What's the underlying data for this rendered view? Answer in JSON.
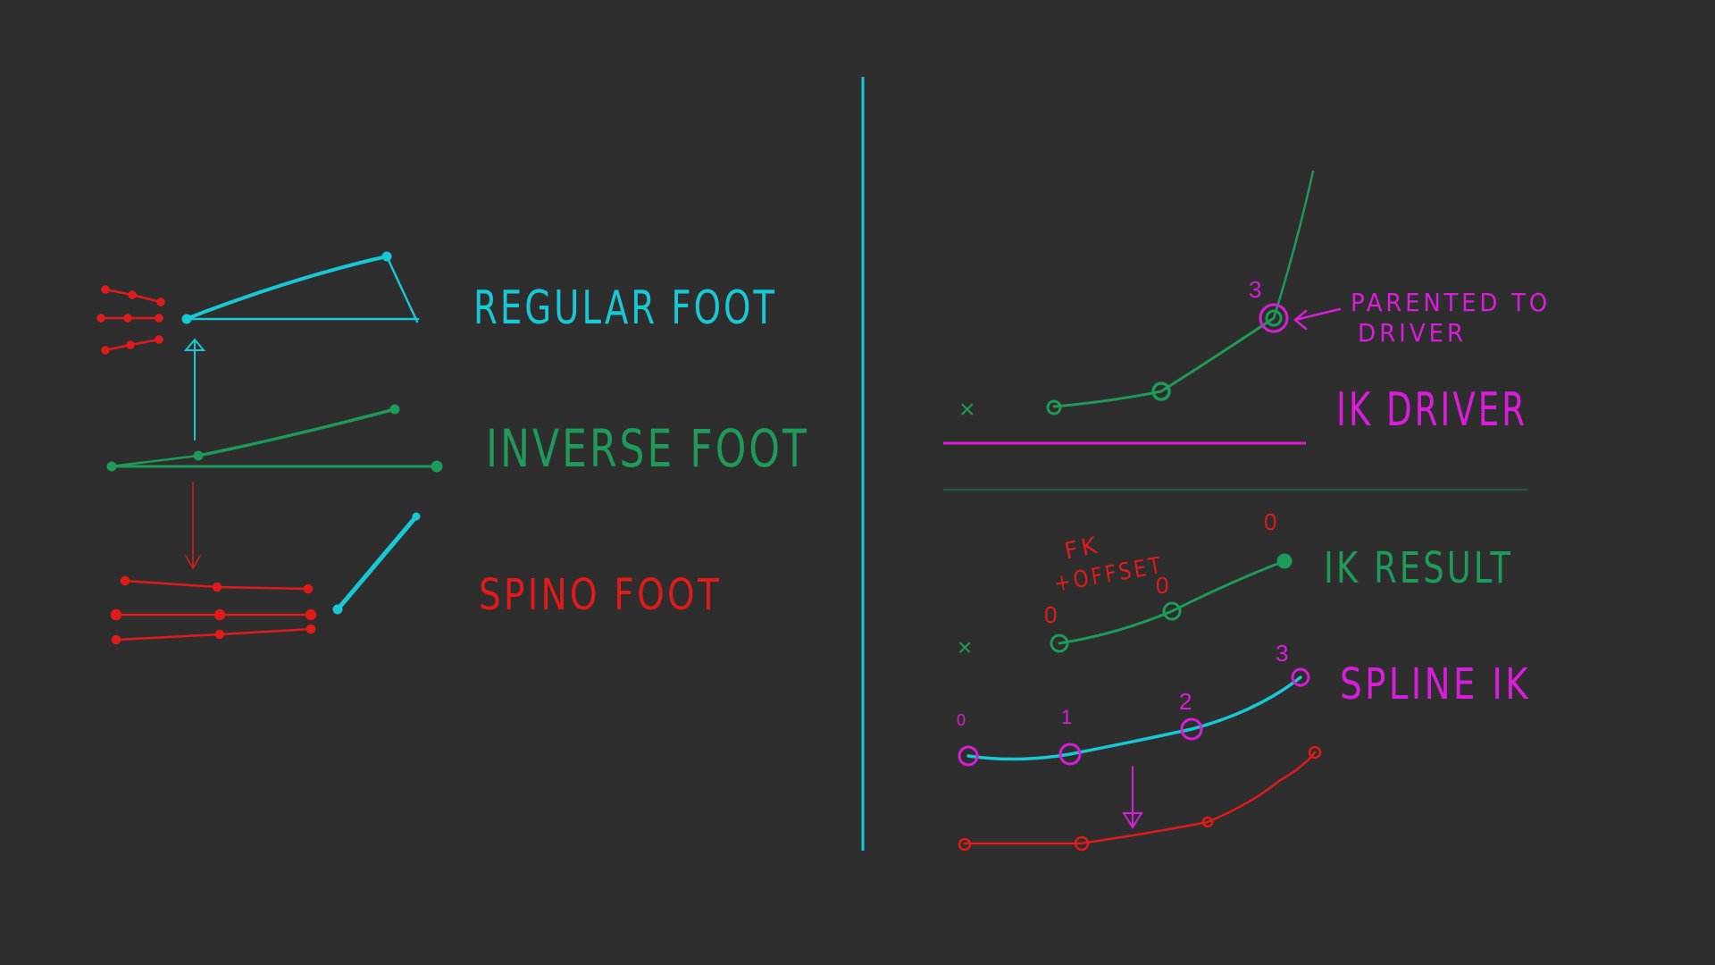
{
  "labels": {
    "regular_foot": "REGULAR FOOT",
    "inverse_foot": "INVERSE FOOT",
    "spino_foot": "SPINO FOOT",
    "parented_line1": "PARENTED TO",
    "parented_line2": "DRIVER",
    "ik_driver": "IK DRIVER",
    "fk_line1": "FK",
    "fk_line2": "+OFFSET",
    "ik_result": "IK RESULT",
    "spline_ik": "SPLINE IK"
  },
  "joint_numbers": {
    "driver_top": "3",
    "result_a": "0",
    "result_b": "0",
    "result_c": "0",
    "spline_0": "0",
    "spline_1": "1",
    "spline_2": "2",
    "spline_3": "3"
  },
  "markers": {
    "cross_top": "×",
    "cross_bottom": "×"
  },
  "colors": {
    "background": "#2e2e2e",
    "cyan": "#18c8d4",
    "green": "#1e9a5a",
    "red": "#e01b1b",
    "magenta": "#d81ed8"
  }
}
